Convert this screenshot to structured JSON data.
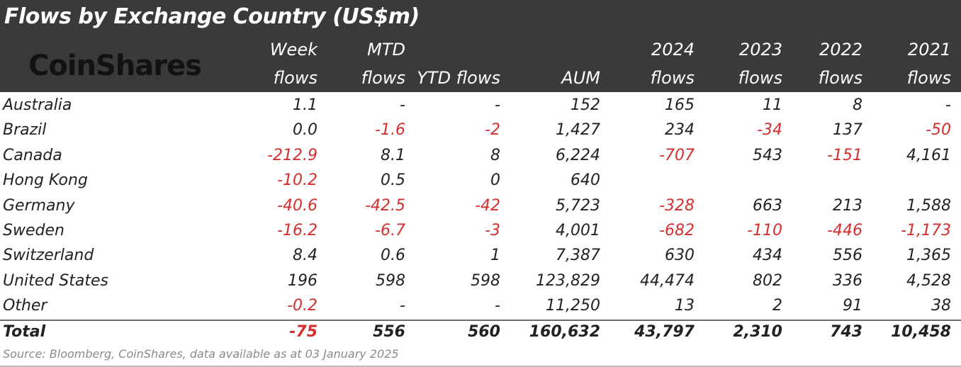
{
  "title": "Flows by Exchange Country (US$m)",
  "logo_text": "CoinShares",
  "colors": {
    "header_bg": "#3a3a3a",
    "negative": "#d42e2e",
    "text": "#222222"
  },
  "chart_data": {
    "type": "table",
    "title": "Flows by Exchange Country (US$m)",
    "columns": [
      {
        "key": "week",
        "line1": "Week",
        "line2": "flows"
      },
      {
        "key": "mtd",
        "line1": "MTD",
        "line2": "flows"
      },
      {
        "key": "ytd",
        "line1": "",
        "line2": "YTD flows"
      },
      {
        "key": "aum",
        "line1": "",
        "line2": "AUM"
      },
      {
        "key": "f2024",
        "line1": "2024",
        "line2": "flows"
      },
      {
        "key": "f2023",
        "line1": "2023",
        "line2": "flows"
      },
      {
        "key": "f2022",
        "line1": "2022",
        "line2": "flows"
      },
      {
        "key": "f2021",
        "line1": "2021",
        "line2": "flows"
      }
    ],
    "rows": [
      {
        "country": "Australia",
        "values": [
          "1.1",
          "-",
          "-",
          "152",
          "165",
          "11",
          "8",
          "-"
        ]
      },
      {
        "country": "Brazil",
        "values": [
          "0.0",
          "-1.6",
          "-2",
          "1,427",
          "234",
          "-34",
          "137",
          "-50"
        ]
      },
      {
        "country": "Canada",
        "values": [
          "-212.9",
          "8.1",
          "8",
          "6,224",
          "-707",
          "543",
          "-151",
          "4,161"
        ]
      },
      {
        "country": "Hong Kong",
        "values": [
          "-10.2",
          "0.5",
          "0",
          "640",
          "",
          "",
          "",
          ""
        ]
      },
      {
        "country": "Germany",
        "values": [
          "-40.6",
          "-42.5",
          "-42",
          "5,723",
          "-328",
          "663",
          "213",
          "1,588"
        ]
      },
      {
        "country": "Sweden",
        "values": [
          "-16.2",
          "-6.7",
          "-3",
          "4,001",
          "-682",
          "-110",
          "-446",
          "-1,173"
        ]
      },
      {
        "country": "Switzerland",
        "values": [
          "8.4",
          "0.6",
          "1",
          "7,387",
          "630",
          "434",
          "556",
          "1,365"
        ]
      },
      {
        "country": "United States",
        "values": [
          "196",
          "598",
          "598",
          "123,829",
          "44,474",
          "802",
          "336",
          "4,528"
        ]
      },
      {
        "country": "Other",
        "values": [
          "-0.2",
          "-",
          "-",
          "11,250",
          "13",
          "2",
          "91",
          "38"
        ]
      }
    ],
    "total": {
      "country": "Total",
      "values": [
        "-75",
        "556",
        "560",
        "160,632",
        "43,797",
        "2,310",
        "743",
        "10,458"
      ]
    }
  },
  "source": "Source: Bloomberg, CoinShares, data available as at 03 January 2025"
}
